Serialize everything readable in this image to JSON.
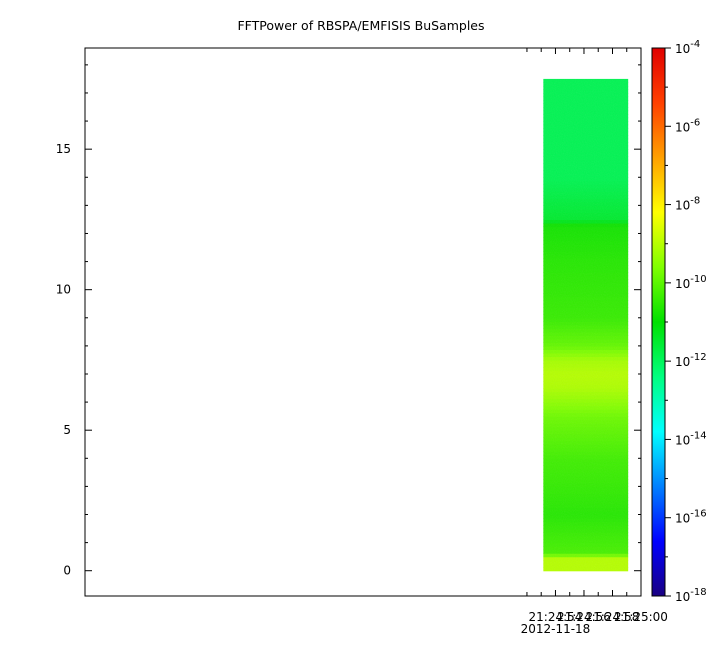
{
  "chart_data": {
    "type": "heatmap",
    "title": "FFTPower of RBSPA/EMFISIS  BuSamples",
    "xlabel": "",
    "ylabel": "",
    "x_ticks": [
      {
        "label": "21:24:54",
        "sublabel": "2012-11-18"
      },
      {
        "label": "21:24:56",
        "sublabel": ""
      },
      {
        "label": "21:24:58",
        "sublabel": ""
      },
      {
        "label": "21:25:00",
        "sublabel": ""
      }
    ],
    "xlim_seconds": [
      21.0,
      60.0
    ],
    "data_x_range_seconds": [
      53.15,
      59.1
    ],
    "y_ticks": [
      0,
      5,
      10,
      15
    ],
    "ylim": [
      -0.9,
      18.6
    ],
    "data_y_range": [
      0,
      17.5
    ],
    "colorbar": {
      "scale": "log",
      "range": [
        1e-18,
        0.0001
      ],
      "tick_labels": [
        {
          "base": "10",
          "exp": "-4",
          "value": -4
        },
        {
          "base": "10",
          "exp": "-6",
          "value": -6
        },
        {
          "base": "10",
          "exp": "-8",
          "value": -8
        },
        {
          "base": "10",
          "exp": "-10",
          "value": -10
        },
        {
          "base": "10",
          "exp": "-12",
          "value": -12
        },
        {
          "base": "10",
          "exp": "-14",
          "value": -14
        },
        {
          "base": "10",
          "exp": "-16",
          "value": -16
        },
        {
          "base": "10",
          "exp": "-18",
          "value": -18
        }
      ],
      "colormap": [
        "#1a0082",
        "#0000ff",
        "#0080ff",
        "#00ffff",
        "#00ff80",
        "#00e000",
        "#80ff00",
        "#ffff00",
        "#ffa000",
        "#ff4000",
        "#e00000"
      ]
    },
    "power_profile_log10": [
      {
        "y": 0.0,
        "v": -9.0
      },
      {
        "y": 0.5,
        "v": -9.0
      },
      {
        "y": 0.6,
        "v": -10.2
      },
      {
        "y": 2.0,
        "v": -10.6
      },
      {
        "y": 4.0,
        "v": -10.3
      },
      {
        "y": 5.5,
        "v": -9.8
      },
      {
        "y": 6.5,
        "v": -9.1
      },
      {
        "y": 7.0,
        "v": -9.0
      },
      {
        "y": 7.5,
        "v": -9.2
      },
      {
        "y": 8.0,
        "v": -9.9
      },
      {
        "y": 9.0,
        "v": -10.4
      },
      {
        "y": 11.0,
        "v": -10.6
      },
      {
        "y": 12.3,
        "v": -10.8
      },
      {
        "y": 12.5,
        "v": -11.5
      },
      {
        "y": 14.0,
        "v": -11.9
      },
      {
        "y": 17.5,
        "v": -11.9
      }
    ]
  }
}
